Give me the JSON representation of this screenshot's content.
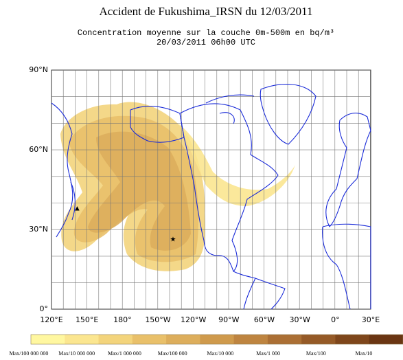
{
  "header": {
    "title": "Accident de Fukushima_IRSN du 12/03/2011",
    "subtitle": [
      "Concentration moyenne sur la couche 0m-500m en bq/m³",
      "20/03/2011 06h00 UTC"
    ]
  },
  "map": {
    "lat_labels": [
      "90°N",
      "60°N",
      "30°N",
      "0°"
    ],
    "lon_labels": [
      "120°E",
      "150°E",
      "180°",
      "150°W",
      "120°W",
      "90°W",
      "60°W",
      "30°W",
      "0°",
      "30°E"
    ]
  },
  "legend": {
    "labels": [
      "Max/100 000 000",
      "Max/10 000 000",
      "Max/1 000 000",
      "Max/100 000",
      "Max/10 000",
      "Max/1 000",
      "Max/100",
      "Max/10"
    ],
    "colors": [
      "#fff7a0",
      "#fbe690",
      "#f3d47c",
      "#e9c06a",
      "#ddae5c",
      "#cf9a4c",
      "#be8440",
      "#ab6f34",
      "#955a27",
      "#7e461b",
      "#6a3512"
    ]
  }
}
